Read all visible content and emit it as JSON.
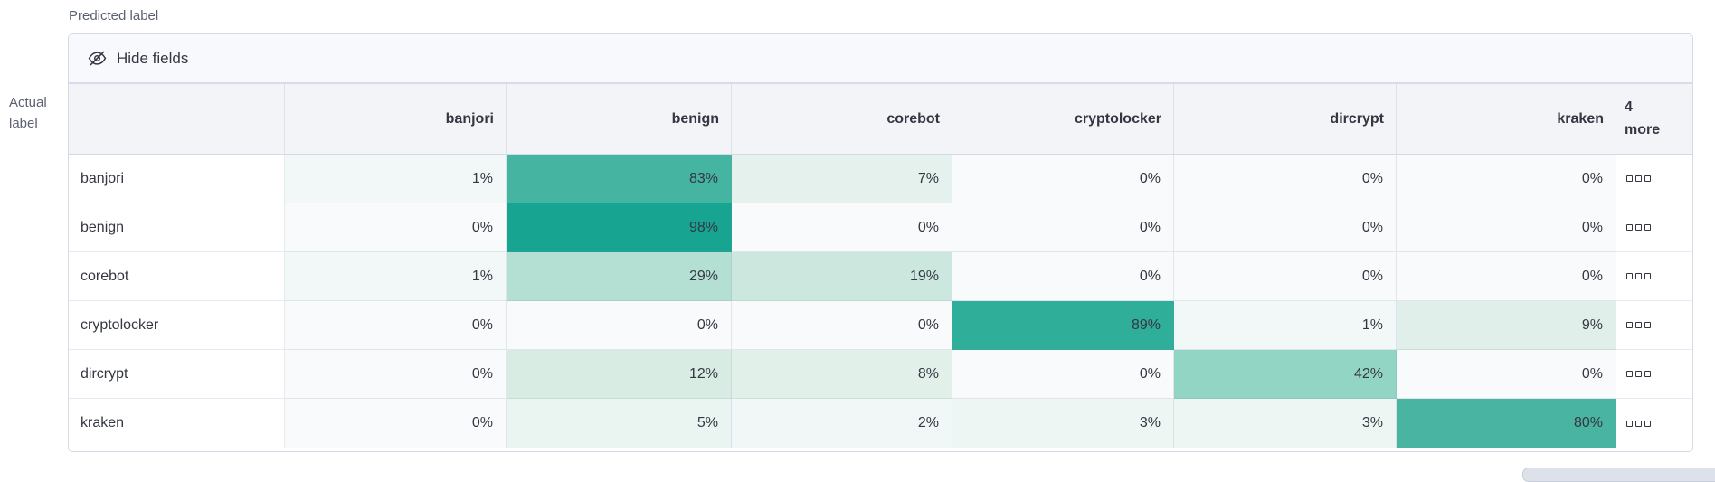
{
  "axis": {
    "predicted_label": "Predicted label",
    "actual_label_lines": [
      "Actual",
      "label"
    ]
  },
  "toolbar": {
    "hide_fields_label": "Hide fields",
    "icon": "eye-closed-icon"
  },
  "chart_data": {
    "type": "heatmap",
    "columns": [
      "banjori",
      "benign",
      "corebot",
      "cryptolocker",
      "dircrypt",
      "kraken"
    ],
    "more_column_label": "4 more",
    "rows": [
      "banjori",
      "benign",
      "corebot",
      "cryptolocker",
      "dircrypt",
      "kraken"
    ],
    "values_percent": [
      [
        1,
        83,
        7,
        0,
        0,
        0
      ],
      [
        0,
        98,
        0,
        0,
        0,
        0
      ],
      [
        1,
        29,
        19,
        0,
        0,
        0
      ],
      [
        0,
        0,
        0,
        89,
        1,
        9
      ],
      [
        0,
        12,
        8,
        0,
        42,
        0
      ],
      [
        0,
        5,
        2,
        3,
        3,
        80
      ]
    ],
    "cell_suffix": "%",
    "more_cell_icon": "boxes-horizontal-icon",
    "heat_colors": {
      "0": "#f8fafc",
      "1": "#f2f8f8",
      "2": "#f0f7f6",
      "3": "#eef6f4",
      "5": "#eaf4f0",
      "7": "#e4f1ec",
      "8": "#e2f0ea",
      "9": "#e0efe9",
      "12": "#d9ece4",
      "19": "#cce8de",
      "29": "#b4e0d3",
      "42": "#93d5c5",
      "80": "#48b4a1",
      "83": "#45b4a1",
      "89": "#2fae9a",
      "98": "#17a591"
    },
    "accent_color": "#17a591",
    "legend_position": "none",
    "grid": true
  }
}
